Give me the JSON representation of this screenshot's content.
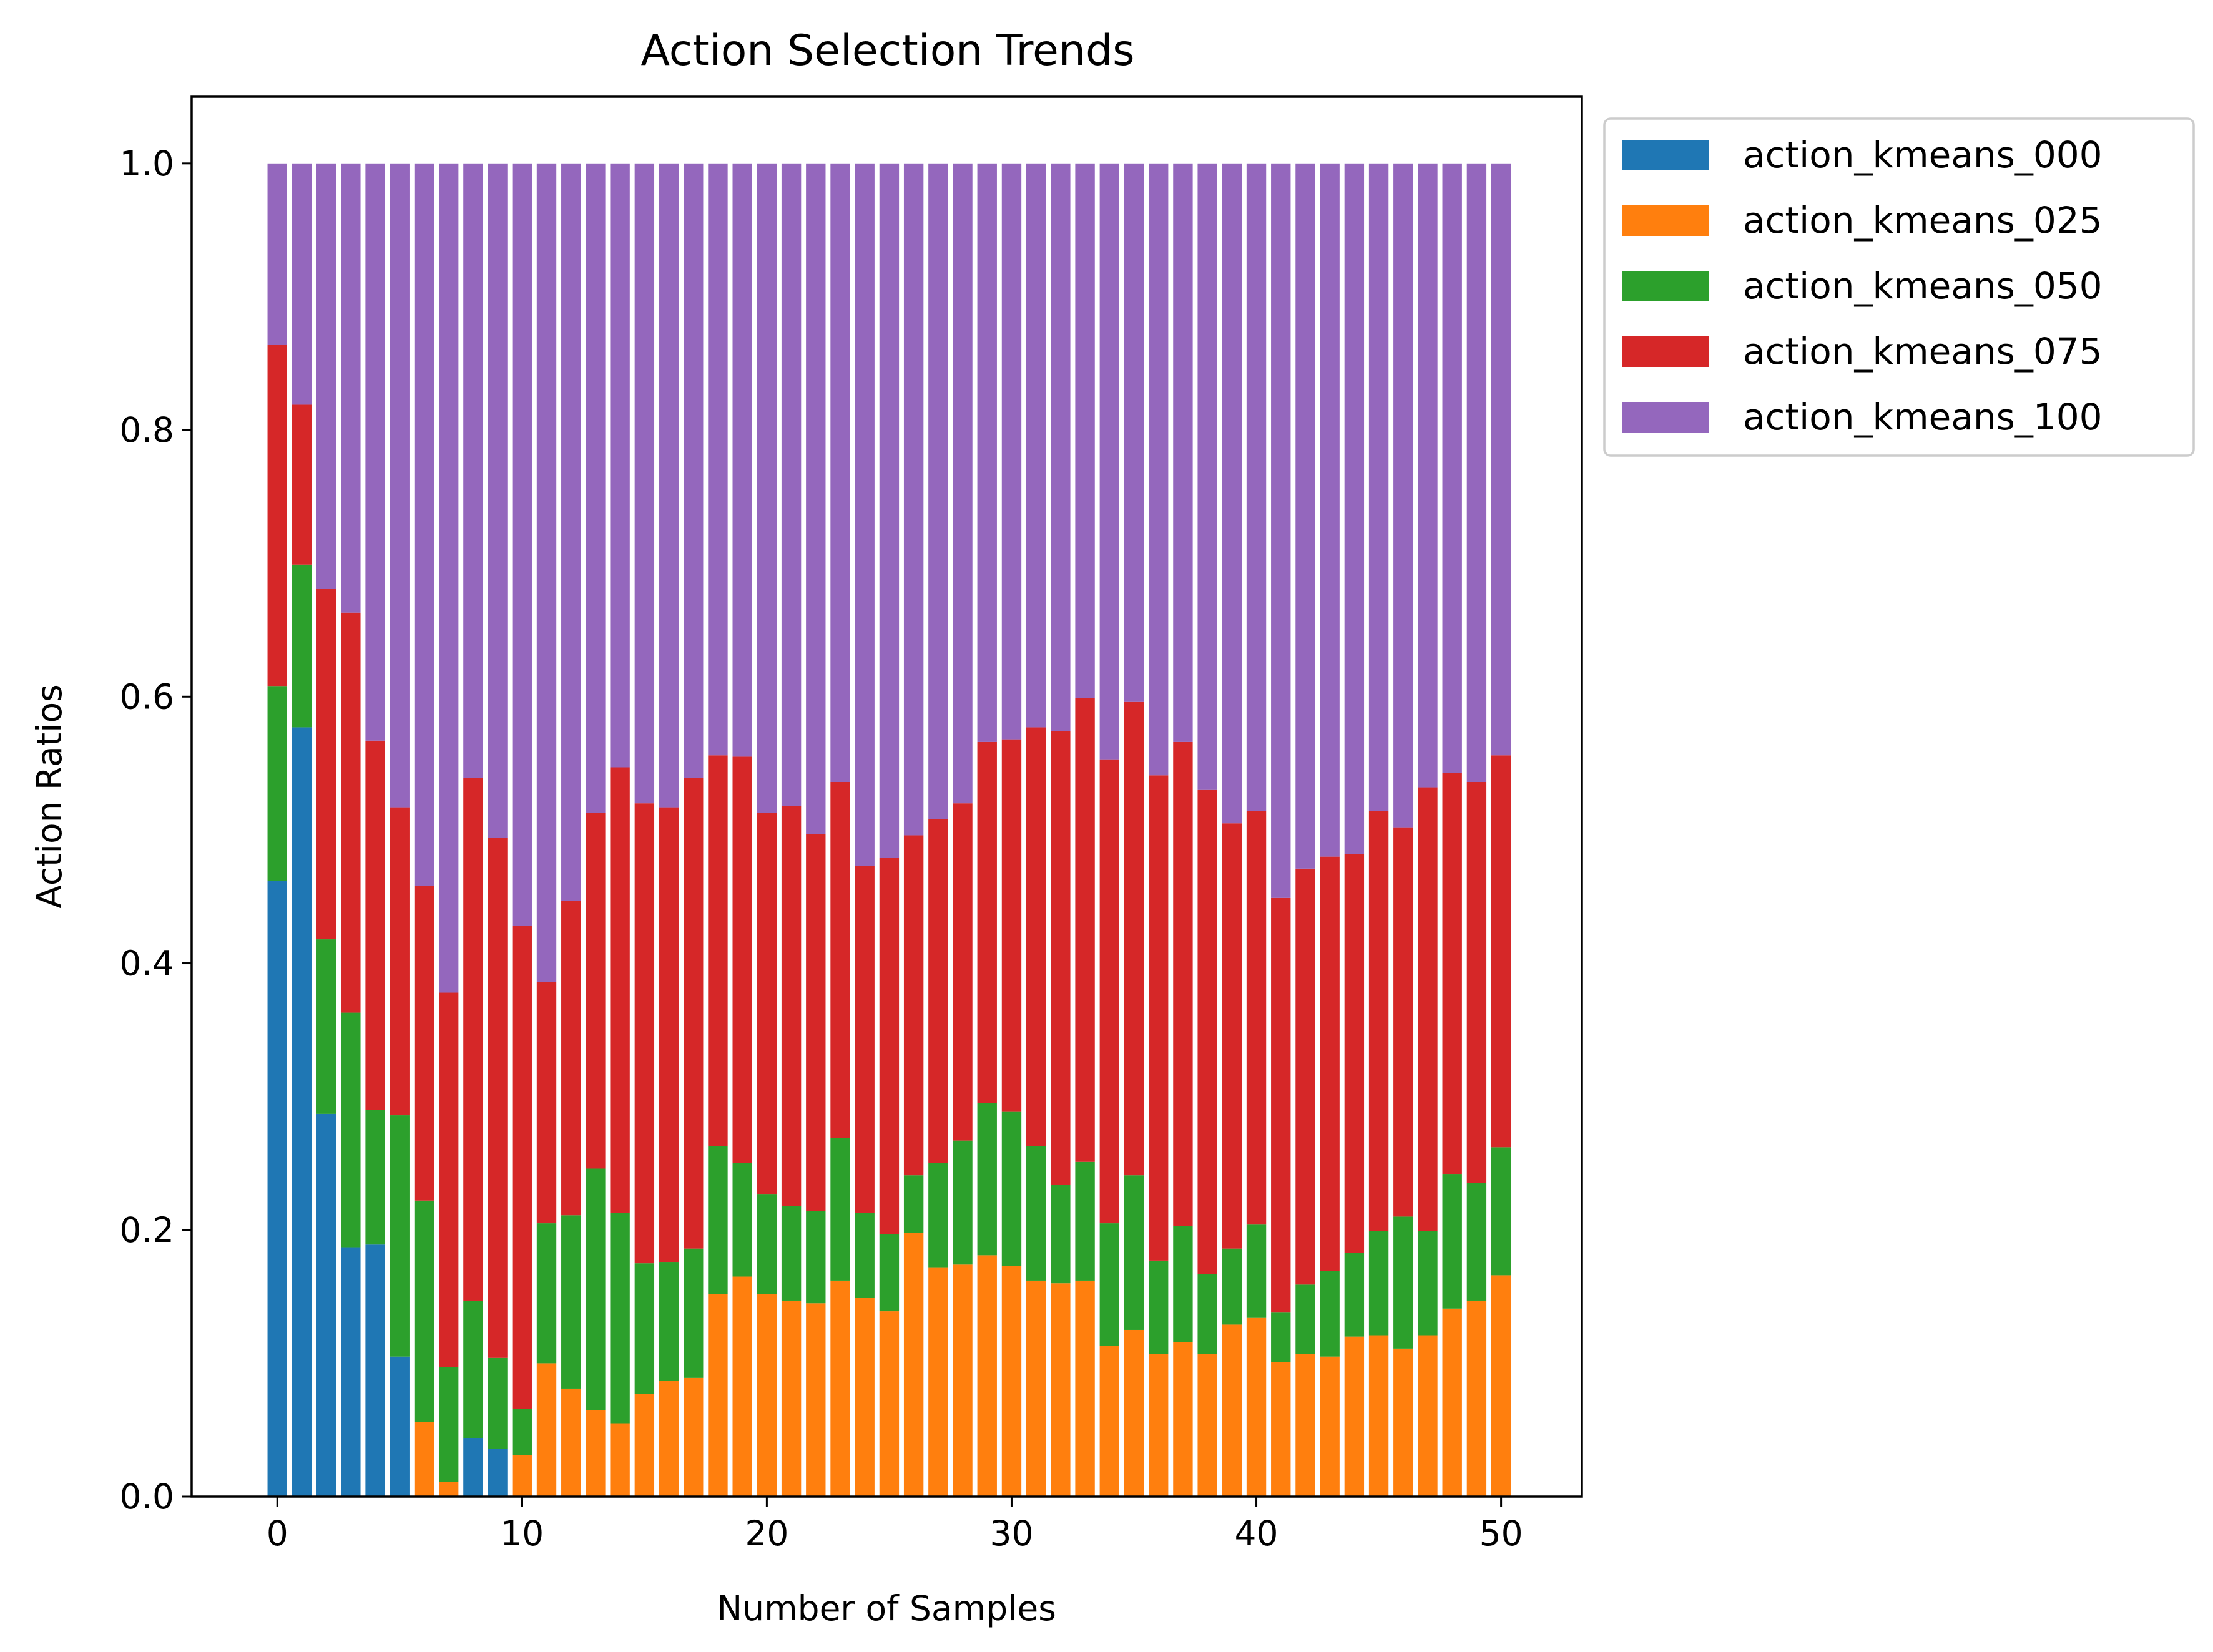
{
  "chart_data": {
    "type": "bar",
    "stacked": true,
    "title": "Action Selection Trends",
    "xlabel": "Number of Samples",
    "ylabel": "Action Ratios",
    "xlim": [
      -3.5,
      53.3
    ],
    "ylim": [
      0,
      1.05
    ],
    "xticks": [
      0,
      10,
      20,
      30,
      40,
      50
    ],
    "xtick_labels": [
      "0",
      "10",
      "20",
      "30",
      "40",
      "50"
    ],
    "yticks": [
      0.0,
      0.2,
      0.4,
      0.6,
      0.8,
      1.0
    ],
    "ytick_labels": [
      "0.0",
      "0.2",
      "0.4",
      "0.6",
      "0.8",
      "1.0"
    ],
    "grid": false,
    "legend_position": "outside-top-right",
    "x": [
      0,
      1,
      2,
      3,
      4,
      5,
      6,
      7,
      8,
      9,
      10,
      11,
      12,
      13,
      14,
      15,
      16,
      17,
      18,
      19,
      20,
      21,
      22,
      23,
      24,
      25,
      26,
      27,
      28,
      29,
      30,
      31,
      32,
      33,
      34,
      35,
      36,
      37,
      38,
      39,
      40,
      41,
      42,
      43,
      44,
      45,
      46,
      47,
      48,
      49,
      50
    ],
    "series": [
      {
        "name": "action_kmeans_000",
        "color": "#1f77b4",
        "values": [
          0.462,
          0.577,
          0.287,
          0.187,
          0.189,
          0.105,
          0,
          0,
          0.044,
          0.036,
          0,
          0,
          0,
          0,
          0,
          0,
          0,
          0,
          0,
          0,
          0,
          0,
          0,
          0,
          0,
          0,
          0,
          0,
          0,
          0,
          0,
          0,
          0,
          0,
          0,
          0,
          0,
          0,
          0,
          0,
          0,
          0,
          0,
          0,
          0,
          0,
          0,
          0,
          0,
          0,
          0
        ]
      },
      {
        "name": "action_kmeans_025",
        "color": "#ff7f0e",
        "values": [
          0,
          0,
          0,
          0,
          0,
          0,
          0.056,
          0.011,
          0,
          0,
          0.031,
          0.1,
          0.081,
          0.065,
          0.055,
          0.077,
          0.087,
          0.089,
          0.152,
          0.165,
          0.152,
          0.147,
          0.145,
          0.162,
          0.149,
          0.139,
          0.198,
          0.172,
          0.174,
          0.181,
          0.173,
          0.162,
          0.16,
          0.162,
          0.113,
          0.125,
          0.107,
          0.116,
          0.107,
          0.129,
          0.134,
          0.101,
          0.107,
          0.105,
          0.12,
          0.121,
          0.111,
          0.121,
          0.141,
          0.147,
          0.166
        ]
      },
      {
        "name": "action_kmeans_050",
        "color": "#2ca02c",
        "values": [
          0.146,
          0.122,
          0.131,
          0.176,
          0.101,
          0.181,
          0.166,
          0.086,
          0.103,
          0.068,
          0.035,
          0.105,
          0.13,
          0.181,
          0.158,
          0.098,
          0.089,
          0.097,
          0.111,
          0.085,
          0.075,
          0.071,
          0.069,
          0.107,
          0.064,
          0.058,
          0.043,
          0.078,
          0.093,
          0.114,
          0.116,
          0.101,
          0.074,
          0.089,
          0.092,
          0.116,
          0.07,
          0.087,
          0.06,
          0.057,
          0.07,
          0.037,
          0.052,
          0.064,
          0.063,
          0.078,
          0.099,
          0.078,
          0.101,
          0.088,
          0.096
        ]
      },
      {
        "name": "action_kmeans_075",
        "color": "#d62728",
        "values": [
          0.256,
          0.12,
          0.263,
          0.3,
          0.277,
          0.231,
          0.236,
          0.281,
          0.392,
          0.39,
          0.362,
          0.181,
          0.236,
          0.267,
          0.334,
          0.345,
          0.341,
          0.353,
          0.293,
          0.305,
          0.286,
          0.3,
          0.283,
          0.267,
          0.26,
          0.282,
          0.255,
          0.258,
          0.253,
          0.271,
          0.279,
          0.314,
          0.34,
          0.348,
          0.348,
          0.355,
          0.364,
          0.363,
          0.363,
          0.319,
          0.31,
          0.311,
          0.312,
          0.311,
          0.299,
          0.315,
          0.292,
          0.333,
          0.301,
          0.301,
          0.294
        ]
      },
      {
        "name": "action_kmeans_100",
        "color": "#9467bd",
        "values": [
          0.136,
          0.181,
          0.319,
          0.337,
          0.433,
          0.483,
          0.542,
          0.622,
          0.461,
          0.506,
          0.572,
          0.614,
          0.553,
          0.487,
          0.453,
          0.48,
          0.483,
          0.461,
          0.444,
          0.445,
          0.487,
          0.482,
          0.503,
          0.464,
          0.527,
          0.521,
          0.504,
          0.492,
          0.48,
          0.434,
          0.432,
          0.423,
          0.426,
          0.401,
          0.447,
          0.404,
          0.459,
          0.434,
          0.47,
          0.495,
          0.486,
          0.551,
          0.529,
          0.52,
          0.518,
          0.486,
          0.498,
          0.468,
          0.457,
          0.464,
          0.444
        ]
      }
    ]
  }
}
